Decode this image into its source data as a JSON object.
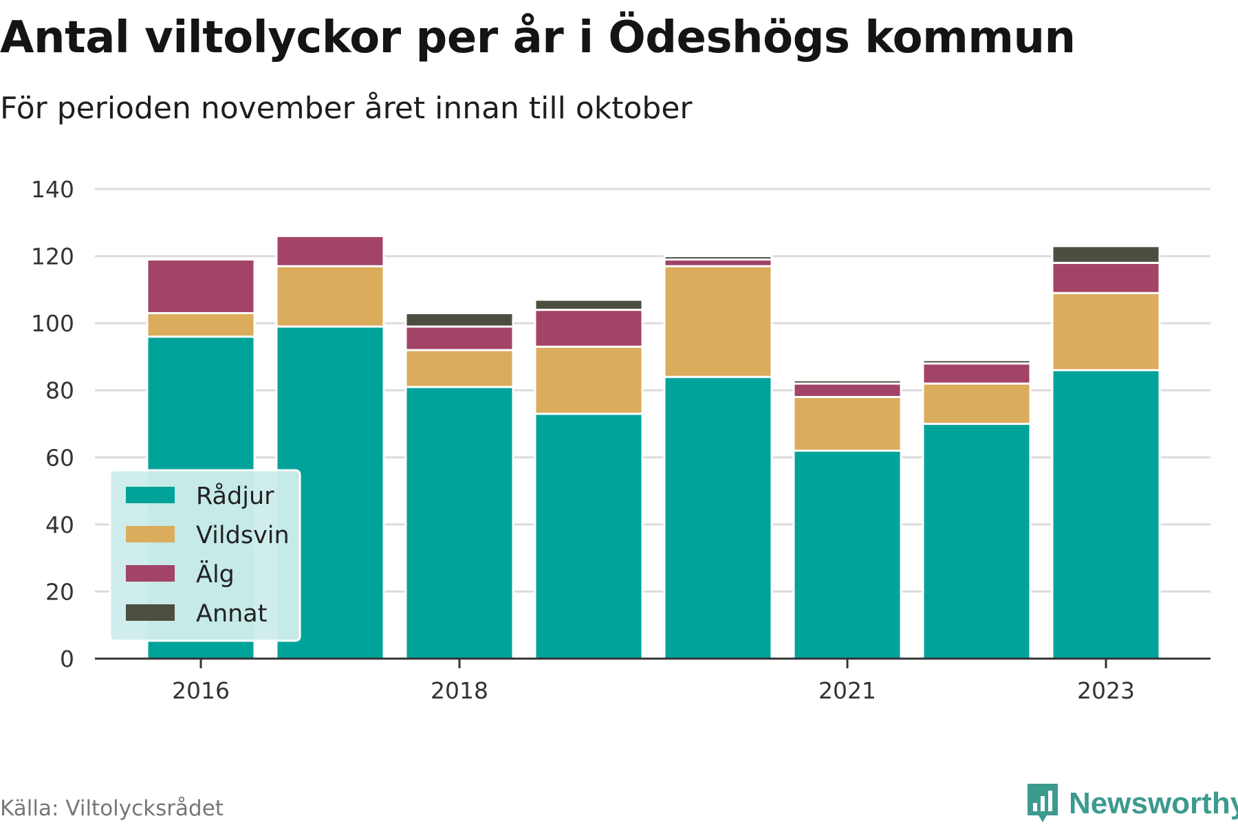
{
  "title": "Antal viltolyckor per år i Ödeshögs kommun",
  "subtitle": "För perioden november året innan till oktober",
  "source": "Källa: Viltolycksrådet",
  "brand": {
    "name": "Newsworthy",
    "icon": "bar-chart-icon",
    "color": "#3c9a8f"
  },
  "chart_data": {
    "type": "bar",
    "stacked": true,
    "categories": [
      "2016",
      "2017",
      "2018",
      "2019",
      "2020",
      "2021",
      "2022",
      "2023"
    ],
    "x_tick_labels": [
      "2016",
      "2018",
      "2021",
      "2023"
    ],
    "y_ticks": [
      0,
      20,
      40,
      60,
      80,
      100,
      120,
      140
    ],
    "ylim": [
      0,
      140
    ],
    "grid": true,
    "legend_position": "bottom-left",
    "series": [
      {
        "name": "Rådjur",
        "color": "#00a39a",
        "values": [
          96,
          99,
          81,
          73,
          84,
          62,
          70,
          86
        ]
      },
      {
        "name": "Vildsvin",
        "color": "#dbac5c",
        "values": [
          7,
          18,
          11,
          20,
          33,
          16,
          12,
          23
        ]
      },
      {
        "name": "Älg",
        "color": "#a34368",
        "values": [
          16,
          9,
          7,
          11,
          2,
          4,
          6,
          9
        ]
      },
      {
        "name": "Annat",
        "color": "#4c4e3f",
        "values": [
          0,
          0,
          4,
          3,
          1,
          1,
          1,
          5
        ]
      }
    ]
  }
}
